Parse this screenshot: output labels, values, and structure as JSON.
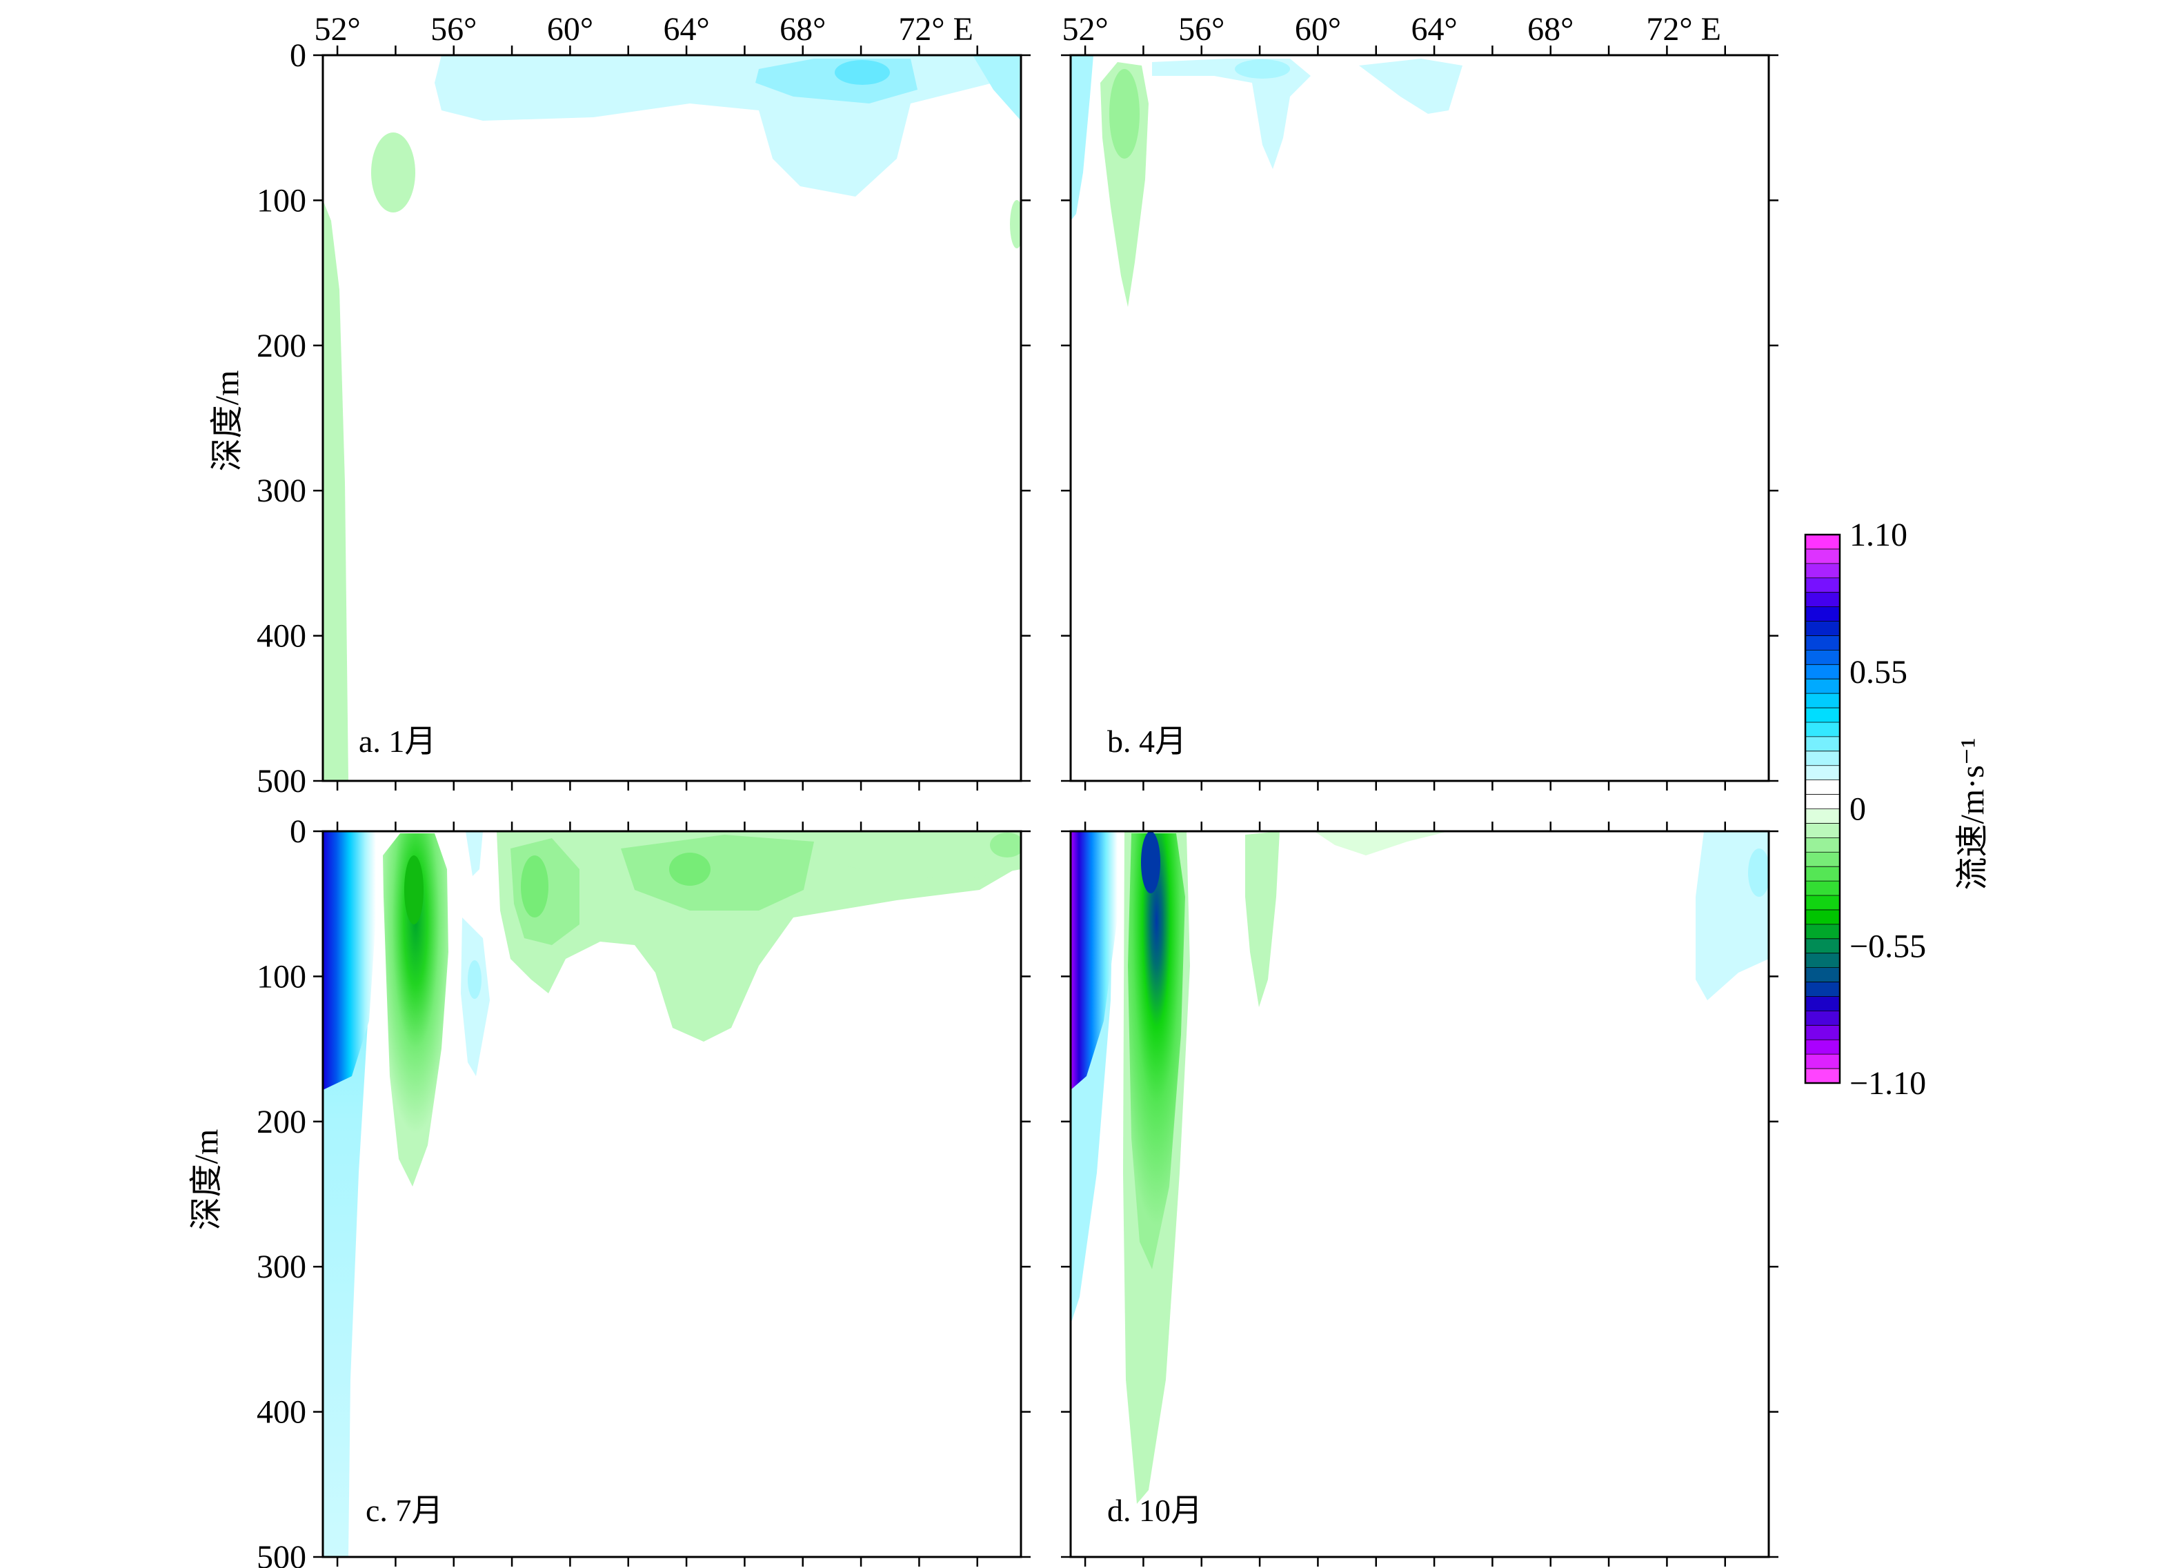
{
  "chart_data": {
    "type": "contour",
    "figure": {
      "ylabel": "深度/m",
      "x_tick_labels": [
        "52°",
        "56°",
        "60°",
        "64°",
        "68°",
        "72° E"
      ],
      "x_tick_values": [
        52,
        56,
        60,
        64,
        68,
        72
      ],
      "y_tick_labels": [
        "0",
        "100",
        "200",
        "300",
        "400",
        "500"
      ],
      "y_tick_values": [
        0,
        100,
        200,
        300,
        400,
        500
      ],
      "xlim": [
        51.5,
        75.5
      ],
      "ylim": [
        500,
        0
      ],
      "colorbar": {
        "label": "流速/m·s⁻¹",
        "tick_labels": [
          "1.10",
          "0.55",
          "0",
          "−0.55",
          "−1.10"
        ],
        "tick_values": [
          1.1,
          0.55,
          0,
          -0.55,
          -1.1
        ],
        "range": [
          -1.1,
          1.1
        ],
        "colors": [
          "#ff33ff",
          "#dd33ff",
          "#aa22ff",
          "#7711ff",
          "#4400ee",
          "#1100dd",
          "#0022cc",
          "#0044dd",
          "#0066ee",
          "#0088ff",
          "#00aaff",
          "#00ccff",
          "#00ddff",
          "#33e8ff",
          "#77f0ff",
          "#aaf6ff",
          "#ccfaff",
          "#ffffff",
          "#ffffff",
          "#ddffdd",
          "#bbf8bb",
          "#99f299",
          "#77ec77",
          "#55e655",
          "#33de33",
          "#11d411",
          "#00c400",
          "#00a82a",
          "#008c55",
          "#007070",
          "#00558a",
          "#0038a8",
          "#1a00c8",
          "#4a00dd",
          "#7a00ee",
          "#aa00ff",
          "#dd22ff",
          "#ff44ff"
        ]
      }
    },
    "panels": [
      {
        "label": "a. 1月",
        "cores": [
          {
            "lon": 53.8,
            "depth": 80,
            "value": -0.12
          },
          {
            "lon": 52.2,
            "depth": 300,
            "value": -0.12
          },
          {
            "lon": 60,
            "depth": 25,
            "value": 0.12
          },
          {
            "lon": 70,
            "depth": 60,
            "value": 0.12
          },
          {
            "lon": 70,
            "depth": 15,
            "value": 0.22
          },
          {
            "lon": 75,
            "depth": 120,
            "value": -0.12
          }
        ]
      },
      {
        "label": "b. 4月",
        "cores": [
          {
            "lon": 52.1,
            "depth": 30,
            "value": 0.12
          },
          {
            "lon": 53.8,
            "depth": 90,
            "value": -0.2
          },
          {
            "lon": 58.5,
            "depth": 40,
            "value": 0.12
          },
          {
            "lon": 63,
            "depth": 20,
            "value": 0.12
          }
        ]
      },
      {
        "label": "c. 7月",
        "cores": [
          {
            "lon": 52.2,
            "depth": 60,
            "value": 0.9
          },
          {
            "lon": 52.3,
            "depth": 250,
            "value": 0.2
          },
          {
            "lon": 54.5,
            "depth": 50,
            "value": -0.55
          },
          {
            "lon": 54.5,
            "depth": 180,
            "value": -0.2
          },
          {
            "lon": 56.3,
            "depth": 80,
            "value": 0.12
          },
          {
            "lon": 59,
            "depth": 40,
            "value": -0.25
          },
          {
            "lon": 64.3,
            "depth": 30,
            "value": -0.3
          },
          {
            "lon": 66,
            "depth": 60,
            "value": -0.15
          }
        ]
      },
      {
        "label": "d. 10月",
        "cores": [
          {
            "lon": 51.9,
            "depth": 50,
            "value": 1.0
          },
          {
            "lon": 52.2,
            "depth": 200,
            "value": 0.3
          },
          {
            "lon": 54.5,
            "depth": 80,
            "value": -0.8
          },
          {
            "lon": 54.5,
            "depth": 250,
            "value": -0.35
          },
          {
            "lon": 54.3,
            "depth": 400,
            "value": -0.15
          },
          {
            "lon": 58.2,
            "depth": 60,
            "value": -0.12
          },
          {
            "lon": 74.2,
            "depth": 60,
            "value": 0.12
          }
        ]
      }
    ]
  }
}
